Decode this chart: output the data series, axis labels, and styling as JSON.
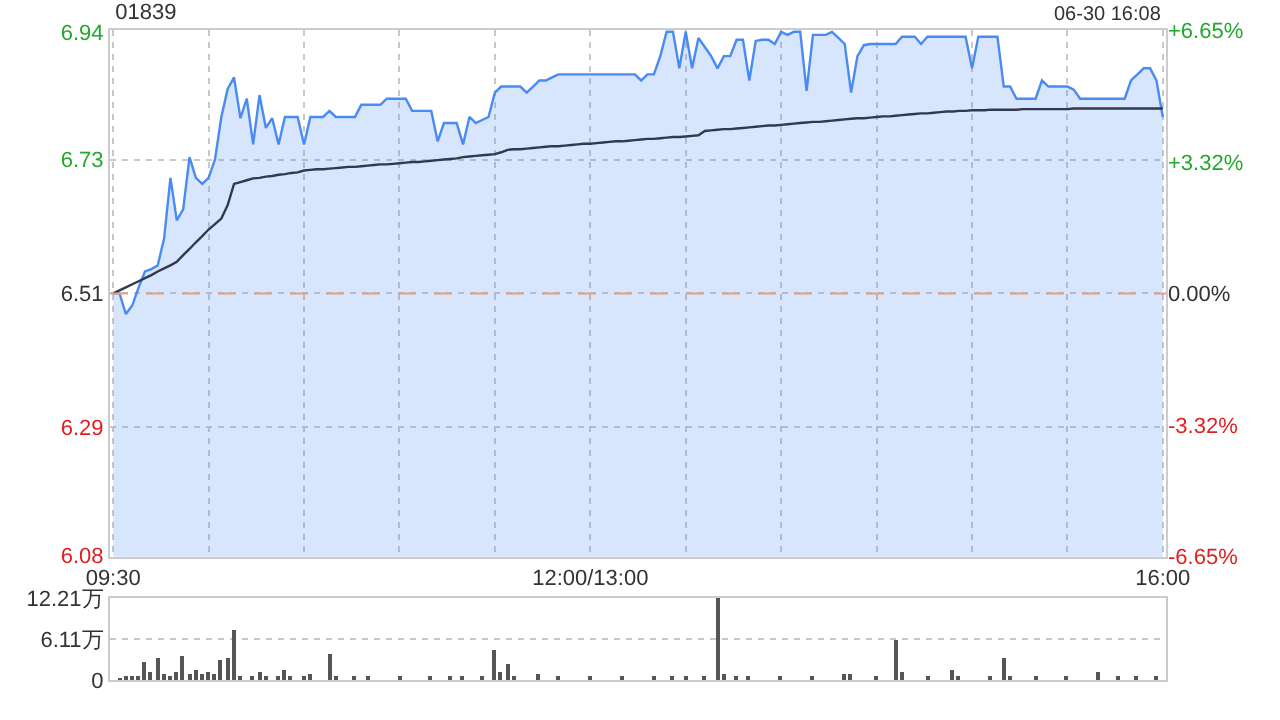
{
  "chart_data": [
    {
      "type": "area",
      "title": "01839",
      "annotations": [
        "06-30 16:08"
      ],
      "categories": [
        "09:30",
        null,
        null,
        null,
        null,
        null,
        null,
        null,
        null,
        null,
        null,
        null,
        null,
        null,
        null,
        null,
        null,
        null,
        null,
        null,
        null,
        null,
        null,
        null,
        null,
        null,
        null,
        null,
        null,
        null,
        null,
        null,
        null,
        null,
        null,
        null,
        null,
        null,
        null,
        null,
        null,
        null,
        null,
        null,
        null,
        null,
        null,
        null,
        null,
        null,
        null,
        null,
        null,
        null,
        null,
        null,
        null,
        null,
        null,
        null,
        null,
        null,
        null,
        null,
        null,
        null,
        null,
        null,
        null,
        null,
        null,
        null,
        null,
        null,
        null,
        "12:00/13:00",
        null,
        null,
        null,
        null,
        null,
        null,
        null,
        null,
        null,
        null,
        null,
        null,
        null,
        null,
        null,
        null,
        null,
        null,
        null,
        null,
        null,
        null,
        null,
        null,
        null,
        null,
        null,
        null,
        null,
        null,
        null,
        null,
        null,
        null,
        null,
        null,
        null,
        null,
        null,
        null,
        null,
        null,
        null,
        null,
        null,
        null,
        null,
        null,
        null,
        null,
        null,
        null,
        null,
        null,
        null,
        null,
        null,
        null,
        null,
        null,
        null,
        null,
        null,
        null,
        null,
        null,
        null,
        null,
        null,
        null,
        null,
        null,
        null,
        null,
        null,
        null,
        null,
        null,
        null,
        null,
        null,
        null,
        null,
        null,
        null,
        null,
        null,
        null,
        null,
        "16:00"
      ],
      "series": [
        {
          "color": "#4a8af4",
          "values": [
            6.51,
            6.51,
            6.476,
            6.49,
            6.52,
            6.546,
            6.55,
            6.556,
            6.6,
            6.7,
            6.63,
            6.648,
            6.734,
            6.7,
            6.69,
            6.7,
            6.73,
            6.8,
            6.846,
            6.865,
            6.798,
            6.83,
            6.755,
            6.836,
            6.782,
            6.798,
            6.755,
            6.8,
            6.8,
            6.8,
            6.755,
            6.8,
            6.8,
            6.8,
            6.81,
            6.8,
            6.8,
            6.8,
            6.8,
            6.82,
            6.82,
            6.82,
            6.82,
            6.83,
            6.83,
            6.83,
            6.83,
            6.81,
            6.81,
            6.81,
            6.81,
            6.76,
            6.79,
            6.79,
            6.79,
            6.755,
            6.8,
            6.79,
            6.795,
            6.8,
            6.84,
            6.85,
            6.85,
            6.85,
            6.85,
            6.84,
            6.85,
            6.86,
            6.86,
            6.865,
            6.87,
            6.87,
            6.87,
            6.87,
            6.87,
            6.87,
            6.87,
            6.87,
            6.87,
            6.87,
            6.87,
            6.87,
            6.87,
            6.86,
            6.87,
            6.87,
            6.9,
            6.94,
            6.94,
            6.88,
            6.94,
            6.88,
            6.93,
            6.915,
            6.9,
            6.88,
            6.9,
            6.9,
            6.927,
            6.927,
            6.86,
            6.925,
            6.927,
            6.927,
            6.92,
            6.94,
            6.935,
            6.94,
            6.94,
            6.843,
            6.935,
            6.935,
            6.935,
            6.94,
            6.93,
            6.92,
            6.84,
            6.9,
            6.918,
            6.92,
            6.92,
            6.92,
            6.92,
            6.92,
            6.932,
            6.932,
            6.932,
            6.92,
            6.932,
            6.932,
            6.932,
            6.932,
            6.932,
            6.932,
            6.932,
            6.88,
            6.932,
            6.932,
            6.932,
            6.932,
            6.85,
            6.85,
            6.83,
            6.83,
            6.83,
            6.83,
            6.86,
            6.85,
            6.85,
            6.85,
            6.85,
            6.845,
            6.83,
            6.83,
            6.83,
            6.83,
            6.83,
            6.83,
            6.83,
            6.83,
            6.86,
            6.87,
            6.88,
            6.88,
            6.86,
            6.8
          ]
        },
        {
          "type": "line",
          "color": "#2f3a4f",
          "values": [
            6.51,
            6.515,
            6.52,
            6.525,
            6.53,
            6.535,
            6.54,
            6.546,
            6.551,
            6.556,
            6.562,
            6.573,
            6.583,
            6.594,
            6.604,
            6.615,
            6.624,
            6.633,
            6.655,
            6.69,
            6.693,
            6.696,
            6.699,
            6.7,
            6.702,
            6.703,
            6.705,
            6.706,
            6.708,
            6.709,
            6.712,
            6.713,
            6.714,
            6.714,
            6.715,
            6.716,
            6.717,
            6.718,
            6.718,
            6.719,
            6.72,
            6.721,
            6.722,
            6.722,
            6.723,
            6.724,
            6.725,
            6.726,
            6.726,
            6.727,
            6.728,
            6.729,
            6.73,
            6.731,
            6.732,
            6.734,
            6.735,
            6.736,
            6.737,
            6.738,
            6.739,
            6.742,
            6.746,
            6.747,
            6.747,
            6.748,
            6.749,
            6.75,
            6.751,
            6.752,
            6.752,
            6.753,
            6.754,
            6.755,
            6.756,
            6.756,
            6.757,
            6.758,
            6.759,
            6.76,
            6.76,
            6.761,
            6.762,
            6.763,
            6.764,
            6.764,
            6.765,
            6.766,
            6.767,
            6.767,
            6.768,
            6.769,
            6.77,
            6.777,
            6.778,
            6.779,
            6.78,
            6.78,
            6.781,
            6.782,
            6.783,
            6.784,
            6.785,
            6.786,
            6.786,
            6.787,
            6.788,
            6.789,
            6.79,
            6.791,
            6.792,
            6.792,
            6.793,
            6.794,
            6.795,
            6.796,
            6.797,
            6.798,
            6.798,
            6.799,
            6.8,
            6.801,
            6.801,
            6.802,
            6.803,
            6.804,
            6.805,
            6.806,
            6.806,
            6.807,
            6.808,
            6.809,
            6.809,
            6.81,
            6.81,
            6.811,
            6.811,
            6.811,
            6.812,
            6.812,
            6.812,
            6.812,
            6.812,
            6.813,
            6.813,
            6.813,
            6.813,
            6.813,
            6.813,
            6.813,
            6.813,
            6.814,
            6.814,
            6.814,
            6.814,
            6.814,
            6.814,
            6.814,
            6.814,
            6.814,
            6.814,
            6.814,
            6.814,
            6.814,
            6.814,
            6.814
          ]
        }
      ],
      "ylim": [
        6.077,
        6.943
      ],
      "yticks": [
        6.08,
        6.29,
        6.51,
        6.73,
        6.94
      ],
      "y2lim": [
        -6.65,
        6.65
      ],
      "y2ticks": [
        {
          "value": -6.65,
          "label": "-6.65%"
        },
        {
          "value": -3.32,
          "label": "-3.32%"
        },
        {
          "value": 0,
          "label": "0.00%"
        },
        {
          "value": 3.32,
          "label": "+3.32%"
        },
        {
          "value": 6.65,
          "label": "+6.65%"
        }
      ],
      "ref_lines": [
        {
          "axis": "y",
          "value": 6.51,
          "color": "#e8a07a",
          "line_style": "dashed"
        }
      ],
      "grid": true
    },
    {
      "type": "bar",
      "color": "#555555",
      "categories": [
        "09:30",
        null,
        null,
        null,
        null,
        null,
        null,
        null,
        null,
        null,
        null,
        null,
        null,
        null,
        null,
        null,
        null,
        null,
        null,
        null,
        null,
        null,
        null,
        null,
        null,
        null,
        null,
        null,
        null,
        null,
        null,
        null,
        null,
        null,
        null,
        null,
        null,
        null,
        null,
        null,
        null,
        null,
        null,
        null,
        null,
        null,
        null,
        null,
        null,
        null,
        null,
        null,
        null,
        null,
        null,
        null,
        null,
        null,
        null,
        null,
        null,
        null,
        null,
        null,
        null,
        null,
        null,
        null,
        null,
        null,
        null,
        null,
        null,
        null,
        null,
        "12:00/13:00",
        null,
        null,
        null,
        null,
        null,
        null,
        null,
        null,
        null,
        null,
        null,
        null,
        null,
        null,
        null,
        null,
        null,
        null,
        null,
        null,
        null,
        null,
        null,
        null,
        null,
        null,
        null,
        null,
        null,
        null,
        null,
        null,
        null,
        null,
        null,
        null,
        null,
        null,
        null,
        null,
        null,
        null,
        null,
        null,
        null,
        null,
        null,
        null,
        null,
        null,
        null,
        null,
        null,
        null,
        null,
        null,
        null,
        null,
        null,
        null,
        null,
        null,
        null,
        null,
        null,
        null,
        null,
        null,
        null,
        null,
        null,
        null,
        null,
        null,
        null,
        null,
        null,
        null,
        null,
        null,
        null,
        null,
        null,
        null,
        null,
        null,
        null,
        null,
        null,
        "16:00"
      ],
      "values": [
        null,
        0.2,
        0.3,
        0.5,
        0.6,
        2.7,
        1.2,
        3.3,
        0.8,
        0.6,
        1.2,
        3.6,
        0.8,
        1.5,
        1.0,
        1.2,
        0.8,
        3.1,
        3.3,
        7.5,
        0.6,
        null,
        0.3,
        1.2,
        0.5,
        null,
        0.6,
        1.5,
        0.3,
        null,
        0.6,
        0.8,
        null,
        null,
        3.8,
        0.4,
        null,
        null,
        0.3,
        null,
        0.6,
        null,
        null,
        null,
        null,
        0.3,
        null,
        null,
        null,
        null,
        0.3,
        null,
        null,
        0.4,
        null,
        0.5,
        null,
        null,
        0.3,
        null,
        4.5,
        1.2,
        2.5,
        0.6,
        null,
        null,
        null,
        1.0,
        null,
        null,
        0.3,
        null,
        null,
        null,
        null,
        0.3,
        null,
        null,
        null,
        null,
        0.4,
        null,
        null,
        null,
        null,
        0.5,
        null,
        null,
        0.6,
        null,
        0.4,
        null,
        null,
        0.6,
        null,
        12.2,
        0.8,
        null,
        0.6,
        null,
        0.4,
        null,
        null,
        null,
        null,
        0.3,
        null,
        null,
        null,
        null,
        0.4,
        null,
        null,
        null,
        null,
        1.0,
        0.8,
        null,
        null,
        null,
        0.4,
        null,
        null,
        6.1,
        1.2,
        null,
        null,
        null,
        0.4,
        null,
        null,
        null,
        1.5,
        0.6,
        null,
        null,
        null,
        null,
        0.4,
        null,
        3.3,
        0.5,
        null,
        null,
        null,
        0.3,
        null,
        null,
        null,
        null,
        0.3,
        null,
        null,
        null,
        null,
        1.2,
        null,
        null,
        0.3,
        null,
        null,
        0.4,
        null,
        null,
        0.6,
        null
      ],
      "ylim": [
        0,
        12.21
      ],
      "yticks": [
        0,
        {
          "value": 6.11,
          "label": "6.11万"
        },
        {
          "value": 12.21,
          "label": "12.21万"
        }
      ],
      "grid": "y",
      "tick_labels": "y"
    }
  ]
}
